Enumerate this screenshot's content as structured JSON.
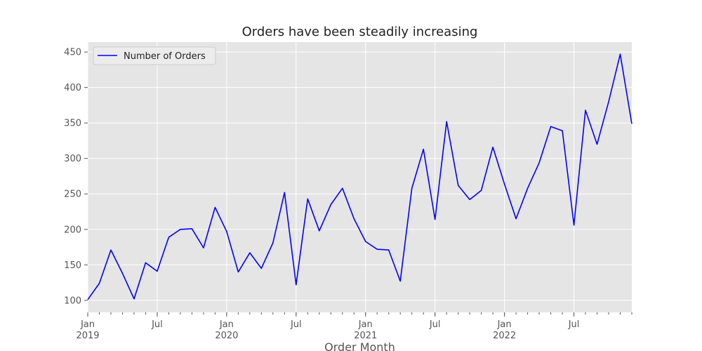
{
  "chart_data": {
    "type": "line",
    "title": "Orders have been steadily increasing",
    "xlabel": "Order Month",
    "ylabel": "",
    "x": [
      "2019-01",
      "2019-02",
      "2019-03",
      "2019-04",
      "2019-05",
      "2019-06",
      "2019-07",
      "2019-08",
      "2019-09",
      "2019-10",
      "2019-11",
      "2019-12",
      "2020-01",
      "2020-02",
      "2020-03",
      "2020-04",
      "2020-05",
      "2020-06",
      "2020-07",
      "2020-08",
      "2020-09",
      "2020-10",
      "2020-11",
      "2020-12",
      "2021-01",
      "2021-02",
      "2021-03",
      "2021-04",
      "2021-05",
      "2021-06",
      "2021-07",
      "2021-08",
      "2021-09",
      "2021-10",
      "2021-11",
      "2021-12",
      "2022-01",
      "2022-02",
      "2022-03",
      "2022-04",
      "2022-05",
      "2022-06",
      "2022-07",
      "2022-08",
      "2022-09",
      "2022-10",
      "2022-11",
      "2022-12"
    ],
    "series": [
      {
        "name": "Number of Orders",
        "color": "#0000ff",
        "values": [
          101,
          124,
          171,
          138,
          102,
          153,
          141,
          189,
          200,
          201,
          174,
          231,
          197,
          140,
          167,
          145,
          181,
          252,
          122,
          243,
          198,
          235,
          258,
          215,
          183,
          172,
          171,
          127,
          258,
          313,
          214,
          352,
          262,
          242,
          255,
          316,
          264,
          215,
          258,
          294,
          345,
          339,
          206,
          368,
          320,
          380,
          447,
          349
        ]
      }
    ],
    "x_range": [
      "2019-01",
      "2022-12"
    ],
    "ylim": [
      83,
      464
    ],
    "yticks": [
      100,
      150,
      200,
      250,
      300,
      350,
      400,
      450
    ],
    "xticks": [
      {
        "month": "2019-01",
        "label": "Jan",
        "sublabel": "2019"
      },
      {
        "month": "2019-07",
        "label": "Jul",
        "sublabel": ""
      },
      {
        "month": "2020-01",
        "label": "Jan",
        "sublabel": "2020"
      },
      {
        "month": "2020-07",
        "label": "Jul",
        "sublabel": ""
      },
      {
        "month": "2021-01",
        "label": "Jan",
        "sublabel": "2021"
      },
      {
        "month": "2021-07",
        "label": "Jul",
        "sublabel": ""
      },
      {
        "month": "2022-01",
        "label": "Jan",
        "sublabel": "2022"
      },
      {
        "month": "2022-07",
        "label": "Jul",
        "sublabel": ""
      }
    ],
    "grid": true,
    "legend": "top-left",
    "colors": {
      "plot_bg": "#e5e5e5",
      "grid": "#ffffff",
      "tick_text": "#555555"
    }
  }
}
